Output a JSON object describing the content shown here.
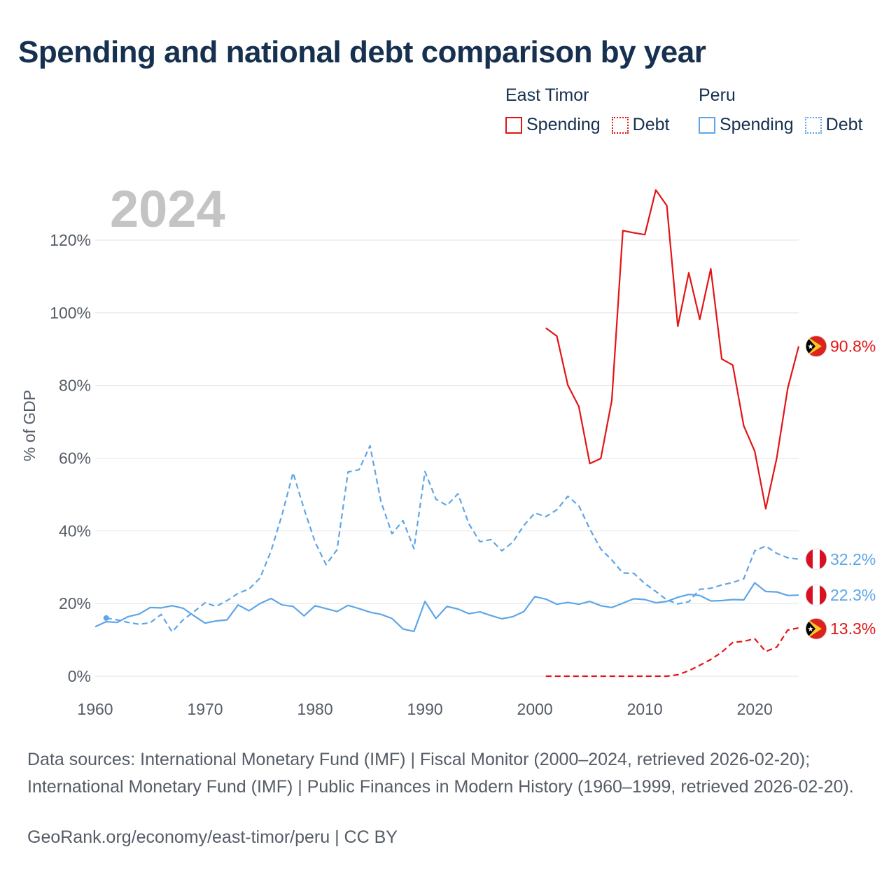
{
  "title": "Spending and national debt comparison by year",
  "legend": {
    "groups": [
      {
        "name": "East Timor",
        "items": [
          {
            "label": "Spending",
            "style": "solid"
          },
          {
            "label": "Debt",
            "style": "dotted"
          }
        ],
        "color": "#e31414"
      },
      {
        "name": "Peru",
        "items": [
          {
            "label": "Spending",
            "style": "solid"
          },
          {
            "label": "Debt",
            "style": "dotted"
          }
        ],
        "color": "#5ea6e6"
      }
    ]
  },
  "source": {
    "text": "Data sources: International Monetary Fund (IMF) | Fiscal Monitor (2000–2024, retrieved 2026-02-20); International Monetary Fund (IMF) | Public Finances in Modern History (1960–1999, retrieved 2026-02-20).",
    "attribution": "GeoRank.org/economy/east-timor/peru | CC BY"
  },
  "colors": {
    "east_timor": "#e31414",
    "peru": "#5ea6e6",
    "grid": "#e3e3e3",
    "axis_text": "#555c66",
    "year_watermark": "#c4c4c4"
  },
  "chart_data": {
    "type": "line",
    "year_label": "2024",
    "ylabel": "% of GDP",
    "xlim": [
      1960,
      2024
    ],
    "ylim": [
      0,
      120
    ],
    "xticks": [
      1960,
      1970,
      1980,
      1990,
      2000,
      2010,
      2020
    ],
    "yticks": [
      0,
      20,
      40,
      60,
      80,
      100,
      120
    ],
    "ytick_labels": [
      "0%",
      "20%",
      "40%",
      "60%",
      "80%",
      "100%",
      "120%"
    ],
    "series": [
      {
        "name": "East Timor Spending",
        "country": "East Timor",
        "metric": "Spending",
        "style": "solid",
        "color": "#e31414",
        "end_label": "90.8%",
        "flag": "east-timor",
        "x": [
          2001,
          2002,
          2003,
          2004,
          2005,
          2006,
          2007,
          2008,
          2009,
          2010,
          2011,
          2012,
          2013,
          2014,
          2015,
          2016,
          2017,
          2018,
          2019,
          2020,
          2021,
          2022,
          2023,
          2024
        ],
        "values": [
          95.8,
          93.6,
          80.1,
          74.2,
          58.5,
          59.9,
          75.9,
          122.6,
          122.0,
          121.5,
          133.8,
          129.5,
          96.3,
          111.0,
          98.2,
          112.1,
          87.3,
          85.6,
          68.9,
          61.9,
          46.1,
          60.0,
          79.2,
          90.8
        ]
      },
      {
        "name": "East Timor Debt",
        "country": "East Timor",
        "metric": "Debt",
        "style": "dashed",
        "color": "#e31414",
        "end_label": "13.3%",
        "flag": "east-timor",
        "x": [
          2001,
          2002,
          2003,
          2004,
          2005,
          2006,
          2007,
          2008,
          2009,
          2010,
          2011,
          2012,
          2013,
          2014,
          2015,
          2016,
          2017,
          2018,
          2019,
          2020,
          2021,
          2022,
          2023,
          2024
        ],
        "values": [
          0,
          0,
          0,
          0,
          0,
          0,
          0,
          0,
          0,
          0,
          0,
          0,
          0.4,
          1.5,
          3.0,
          4.6,
          6.6,
          9.3,
          9.6,
          10.3,
          6.8,
          8.0,
          12.7,
          13.3
        ]
      },
      {
        "name": "Peru Spending",
        "country": "Peru",
        "metric": "Spending",
        "style": "solid",
        "color": "#5ea6e6",
        "end_label": "22.3%",
        "flag": "peru",
        "x": [
          1960,
          1961,
          1962,
          1963,
          1964,
          1965,
          1966,
          1967,
          1968,
          1969,
          1970,
          1971,
          1972,
          1973,
          1974,
          1975,
          1976,
          1977,
          1978,
          1979,
          1980,
          1981,
          1982,
          1983,
          1984,
          1985,
          1986,
          1987,
          1988,
          1989,
          1990,
          1991,
          1992,
          1993,
          1994,
          1995,
          1996,
          1997,
          1998,
          1999,
          2000,
          2001,
          2002,
          2003,
          2004,
          2005,
          2006,
          2007,
          2008,
          2009,
          2010,
          2011,
          2012,
          2013,
          2014,
          2015,
          2016,
          2017,
          2018,
          2019,
          2020,
          2021,
          2022,
          2023,
          2024
        ],
        "values": [
          13.6,
          15.0,
          14.8,
          16.4,
          17.1,
          18.9,
          18.8,
          19.4,
          18.7,
          16.6,
          14.6,
          15.2,
          15.5,
          19.6,
          18.0,
          20.0,
          21.4,
          19.6,
          19.2,
          16.6,
          19.4,
          18.6,
          17.8,
          19.5,
          18.6,
          17.6,
          17.0,
          15.9,
          13.0,
          12.3,
          20.6,
          15.9,
          19.2,
          18.5,
          17.2,
          17.7,
          16.7,
          15.8,
          16.4,
          17.8,
          21.9,
          21.2,
          19.8,
          20.3,
          19.8,
          20.6,
          19.4,
          18.9,
          20.1,
          21.3,
          21.1,
          20.2,
          20.6,
          21.7,
          22.5,
          22.2,
          20.7,
          20.8,
          21.1,
          21.0,
          25.7,
          23.3,
          23.2,
          22.2,
          22.3
        ]
      },
      {
        "name": "Peru Debt",
        "country": "Peru",
        "metric": "Debt",
        "style": "dashed",
        "color": "#5ea6e6",
        "end_label": "32.2%",
        "flag": "peru",
        "x": [
          1961,
          1962,
          1963,
          1964,
          1965,
          1966,
          1967,
          1968,
          1969,
          1970,
          1971,
          1972,
          1973,
          1974,
          1975,
          1976,
          1977,
          1978,
          1979,
          1980,
          1981,
          1982,
          1983,
          1984,
          1985,
          1986,
          1987,
          1988,
          1989,
          1990,
          1991,
          1992,
          1993,
          1994,
          1995,
          1996,
          1997,
          1998,
          1999,
          2000,
          2001,
          2002,
          2003,
          2004,
          2005,
          2006,
          2007,
          2008,
          2009,
          2010,
          2011,
          2012,
          2013,
          2014,
          2015,
          2016,
          2017,
          2018,
          2019,
          2020,
          2021,
          2022,
          2023,
          2024
        ],
        "values": [
          16.0,
          15.5,
          14.8,
          14.3,
          14.7,
          17.0,
          12.2,
          15.5,
          17.8,
          20.2,
          19.2,
          20.8,
          22.8,
          24.0,
          27.0,
          34.5,
          44.5,
          56.0,
          46.0,
          36.9,
          30.7,
          34.8,
          56.2,
          56.8,
          63.4,
          48.0,
          39.2,
          42.8,
          35.1,
          56.3,
          48.7,
          47.0,
          50.2,
          41.9,
          37.0,
          37.6,
          34.5,
          36.9,
          41.5,
          44.9,
          43.9,
          45.8,
          49.5,
          46.9,
          40.5,
          35.0,
          32.0,
          28.4,
          28.3,
          25.5,
          23.3,
          21.0,
          19.9,
          20.5,
          23.9,
          24.2,
          25.1,
          25.8,
          26.8,
          34.5,
          35.8,
          33.8,
          32.6,
          32.2
        ]
      }
    ]
  }
}
